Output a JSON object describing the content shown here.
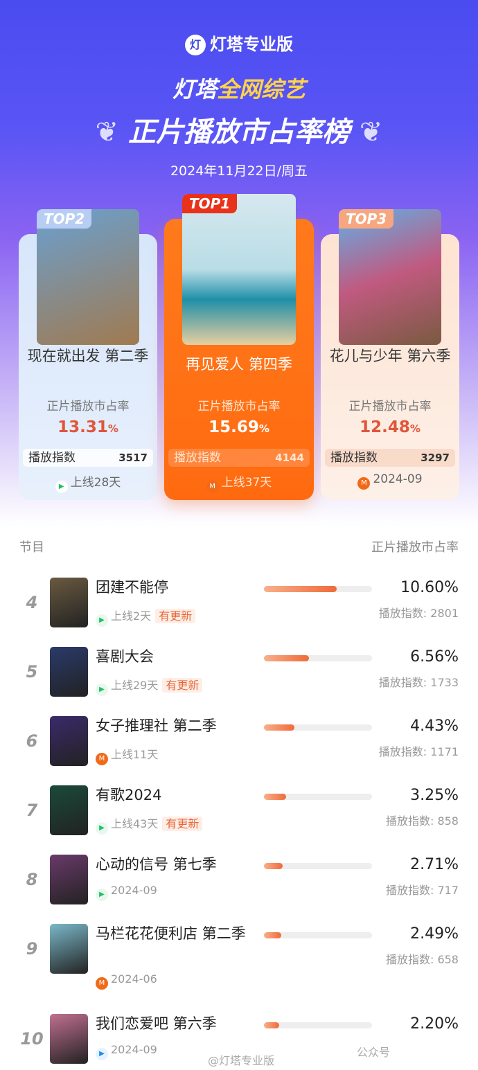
{
  "brand": {
    "logo": "灯",
    "name": "灯塔专业版"
  },
  "title": {
    "line1_white": "灯塔",
    "line1_yellow": "全网综艺",
    "line2": "正片播放市占率榜"
  },
  "date": "2024年11月22日/周五",
  "top3": [
    {
      "badge": "TOP2",
      "title": "现在就出发 第二季",
      "share_label": "正片播放市占率",
      "share": "13.31",
      "pct": "%",
      "index_label": "播放指数",
      "index": "3517",
      "platform": "tencent",
      "footer": "上线28天"
    },
    {
      "badge": "TOP1",
      "title": "再见爱人 第四季",
      "share_label": "正片播放市占率",
      "share": "15.69",
      "pct": "%",
      "index_label": "播放指数",
      "index": "4144",
      "platform": "mgtv",
      "footer": "上线37天"
    },
    {
      "badge": "TOP3",
      "title": "花儿与少年 第六季",
      "share_label": "正片播放市占率",
      "share": "12.48",
      "pct": "%",
      "index_label": "播放指数",
      "index": "3297",
      "platform": "mgtv",
      "footer": "2024-09"
    }
  ],
  "list_header": {
    "left": "节目",
    "right": "正片播放市占率"
  },
  "rows": [
    {
      "rank": "4",
      "title": "团建不能停",
      "platform": "tencent",
      "sub": "上线2天",
      "update": "有更新",
      "share": "10.60%",
      "share_value": 10.6,
      "index": "播放指数: 2801"
    },
    {
      "rank": "5",
      "title": "喜剧大会",
      "platform": "tencent",
      "sub": "上线29天",
      "update": "有更新",
      "share": "6.56%",
      "share_value": 6.56,
      "index": "播放指数: 1733"
    },
    {
      "rank": "6",
      "title": "女子推理社 第二季",
      "platform": "mgtv",
      "sub": "上线11天",
      "update": "",
      "share": "4.43%",
      "share_value": 4.43,
      "index": "播放指数: 1171"
    },
    {
      "rank": "7",
      "title": "有歌2024",
      "platform": "tencent",
      "sub": "上线43天",
      "update": "有更新",
      "share": "3.25%",
      "share_value": 3.25,
      "index": "播放指数: 858"
    },
    {
      "rank": "8",
      "title": "心动的信号 第七季",
      "platform": "tencent",
      "sub": "2024-09",
      "update": "",
      "share": "2.71%",
      "share_value": 2.71,
      "index": "播放指数: 717"
    },
    {
      "rank": "9",
      "title": "马栏花花便利店 第二季",
      "platform": "mgtv",
      "sub": "2024-06",
      "update": "",
      "share": "2.49%",
      "share_value": 2.49,
      "index": "播放指数: 658"
    },
    {
      "rank": "10",
      "title": "我们恋爱吧 第六季",
      "platform": "youku",
      "sub": "2024-09",
      "update": "",
      "share": "2.20%",
      "share_value": 2.2,
      "index": ""
    }
  ],
  "watermarks": {
    "weibo": "@灯塔专业版",
    "wechat": "公众号"
  },
  "colors": {
    "accent": "#ef6a3a",
    "top1": "#ff6e14",
    "hero": "#4a4cf0"
  }
}
